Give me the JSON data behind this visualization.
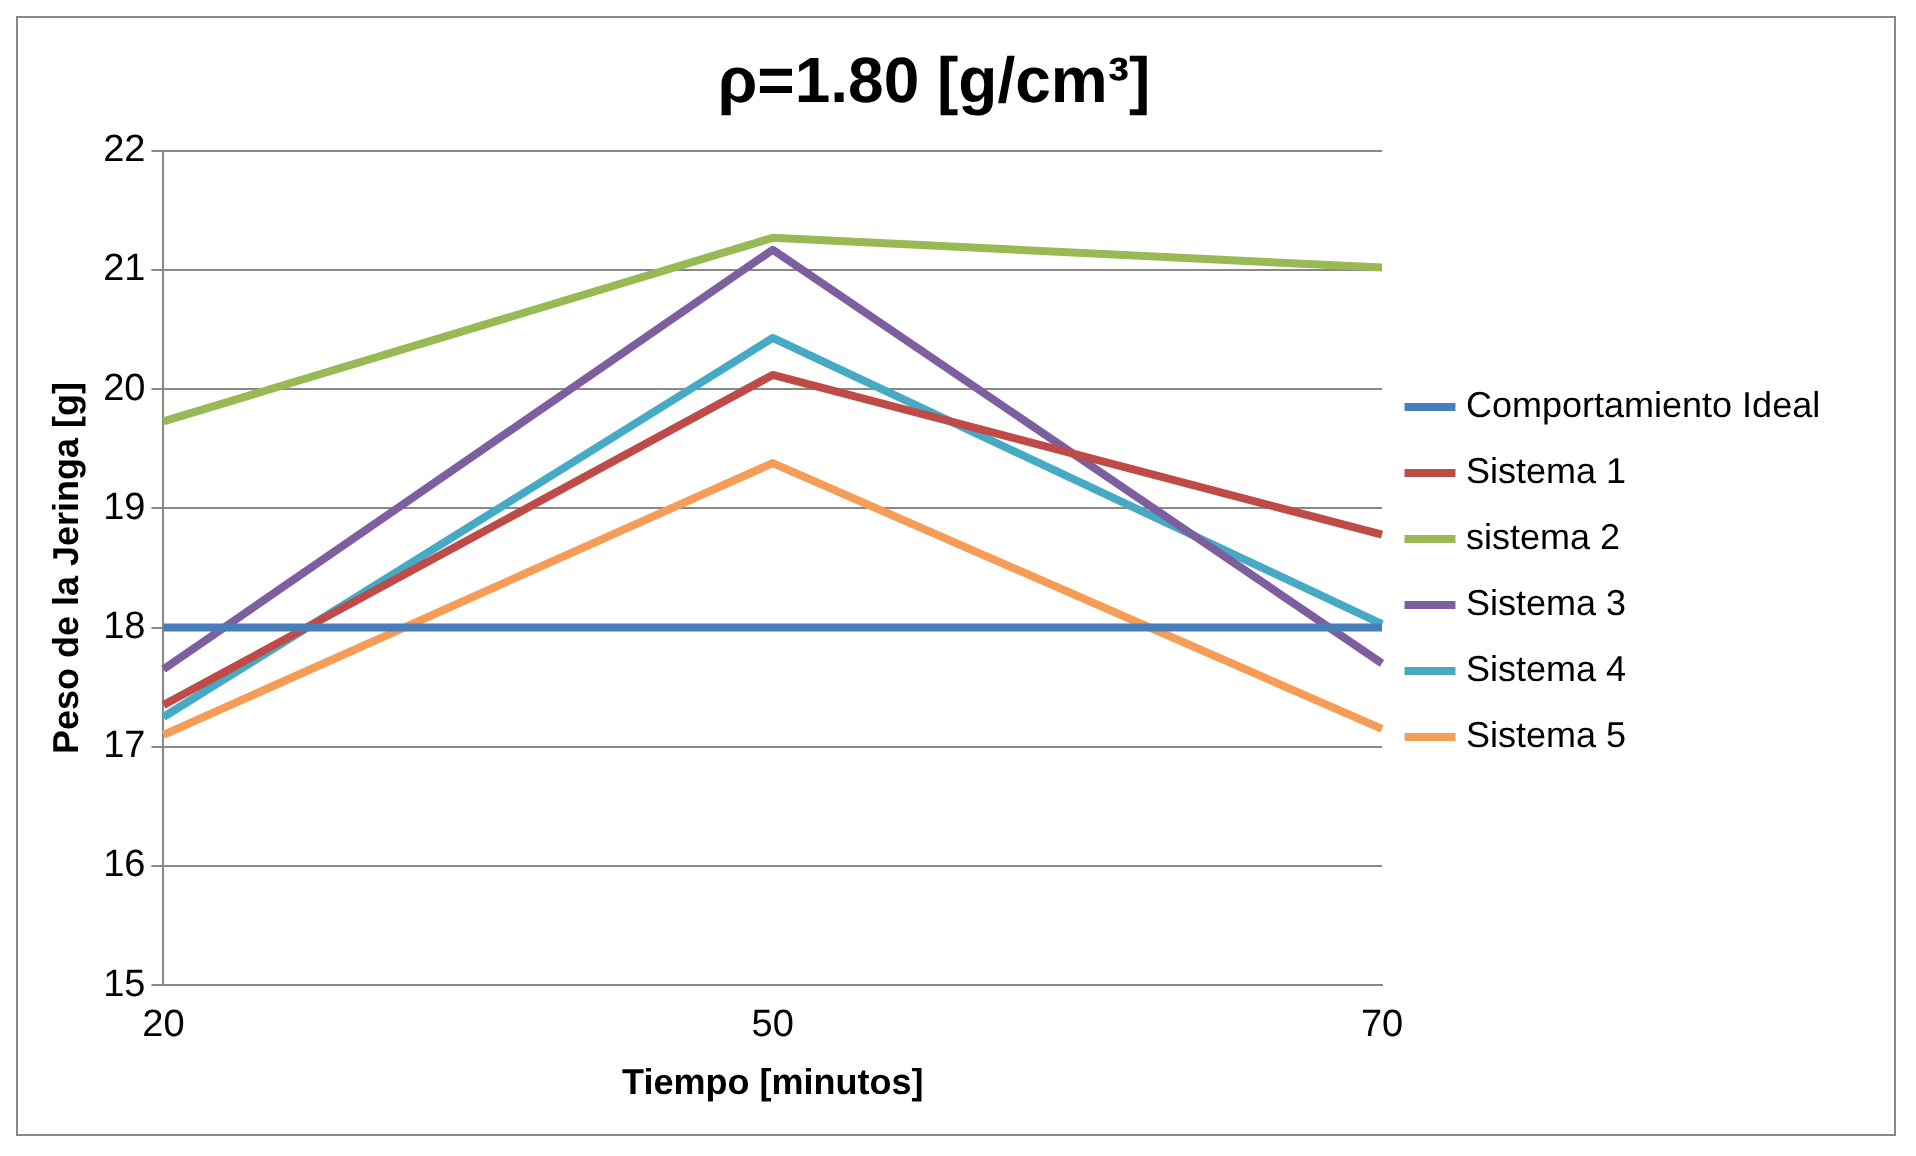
{
  "chart_data": {
    "type": "line",
    "title": "ρ=1.80 [g/cm³]",
    "xlabel": "Tiempo [minutos]",
    "ylabel": "Peso de la Jeringa [g]",
    "categories": [
      "20",
      "50",
      "70"
    ],
    "series": [
      {
        "name": "Comportamiento Ideal",
        "color": "#4a7ebb",
        "values": [
          18,
          18,
          18
        ]
      },
      {
        "name": "Sistema 1",
        "color": "#be4b48",
        "values": [
          17.35,
          20.12,
          18.78
        ]
      },
      {
        "name": "sistema 2",
        "color": "#98b954",
        "values": [
          19.73,
          21.27,
          21.02
        ]
      },
      {
        "name": "Sistema 3",
        "color": "#7d5fa0",
        "values": [
          17.65,
          21.17,
          17.7
        ]
      },
      {
        "name": "Sistema 4",
        "color": "#46aac5",
        "values": [
          17.25,
          20.43,
          18.03
        ]
      },
      {
        "name": "Sistema 5",
        "color": "#f59d56",
        "values": [
          17.1,
          19.38,
          17.15
        ]
      }
    ],
    "ylim": [
      15,
      22
    ],
    "yticks": [
      15,
      16,
      17,
      18,
      19,
      20,
      21,
      22
    ],
    "grid": "y",
    "legend": "right",
    "marker": "none",
    "line_style": "solid"
  }
}
